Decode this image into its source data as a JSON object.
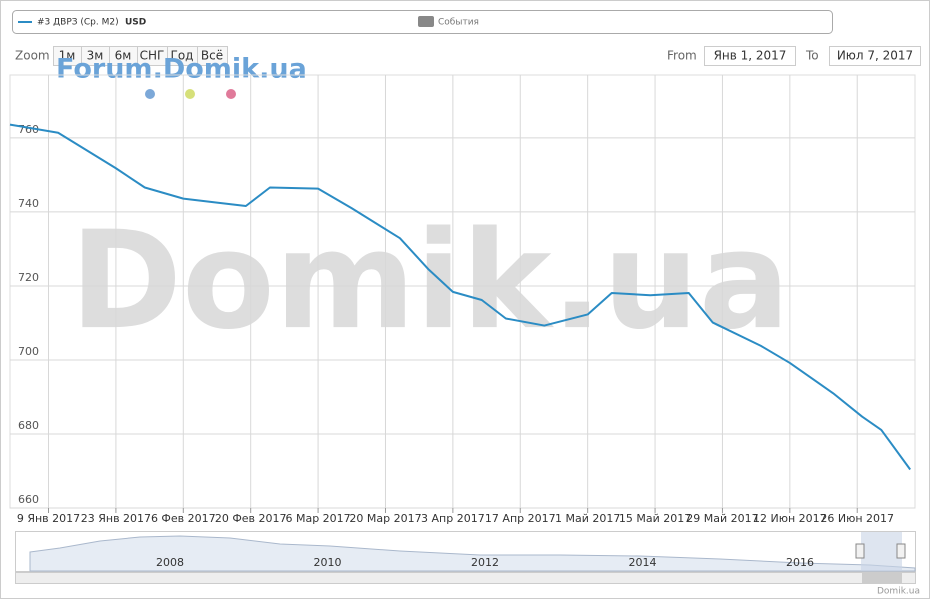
{
  "chart_data": {
    "type": "line",
    "legend": {
      "series_label": "#3 ДВРЗ (Ср. М2)",
      "unit": "USD",
      "events": "События"
    },
    "zoom": {
      "label": "Zoom",
      "buttons": [
        "1м",
        "3м",
        "6м",
        "СНГ",
        "Год",
        "Всё"
      ]
    },
    "range": {
      "from_label": "From",
      "from": "Янв 1, 2017",
      "to_label": "To",
      "to": "Июл 7, 2017"
    },
    "watermark": "Forum.Domik.ua",
    "background_text": "Domik.ua",
    "credits": "Domik.ua",
    "series": [
      {
        "name": "#3 ДВРЗ (Ср. М2)",
        "color": "#2b8cc4",
        "x": [
          "2017-01-01",
          "2017-01-11",
          "2017-01-23",
          "2017-01-29",
          "2017-02-06",
          "2017-02-13",
          "2017-02-19",
          "2017-02-24",
          "2017-03-06",
          "2017-03-13",
          "2017-03-23",
          "2017-03-29",
          "2017-04-03",
          "2017-04-09",
          "2017-04-14",
          "2017-04-22",
          "2017-05-01",
          "2017-05-06",
          "2017-05-14",
          "2017-05-22",
          "2017-05-27",
          "2017-06-06",
          "2017-06-12",
          "2017-06-21",
          "2017-06-27",
          "2017-07-01",
          "2017-07-07"
        ],
        "values": [
          763.6,
          761.4,
          751.8,
          746.6,
          743.6,
          742.5,
          741.6,
          746.6,
          746.3,
          741,
          732.9,
          724.4,
          718.4,
          716.2,
          711.2,
          709.3,
          712.3,
          718.1,
          717.5,
          718.1,
          710.1,
          703.8,
          699.2,
          691,
          684.7,
          681.1,
          670.4
        ]
      }
    ],
    "xlim": [
      "2017-01-01",
      "2017-07-08"
    ],
    "xticks": [
      {
        "value": "2017-01-09",
        "label": "9 Янв 2017"
      },
      {
        "value": "2017-01-23",
        "label": "23 Янв 2017"
      },
      {
        "value": "2017-02-06",
        "label": "6 Фев 2017"
      },
      {
        "value": "2017-02-20",
        "label": "20 Фев 2017"
      },
      {
        "value": "2017-03-06",
        "label": "6 Мар 2017"
      },
      {
        "value": "2017-03-20",
        "label": "20 Мар 2017"
      },
      {
        "value": "2017-04-03",
        "label": "3 Апр 2017"
      },
      {
        "value": "2017-04-17",
        "label": "17 Апр 2017"
      },
      {
        "value": "2017-05-01",
        "label": "1 Май 2017"
      },
      {
        "value": "2017-05-15",
        "label": "15 Май 2017"
      },
      {
        "value": "2017-05-29",
        "label": "29 Май 2017"
      },
      {
        "value": "2017-06-12",
        "label": "12 Июн 2017"
      },
      {
        "value": "2017-06-26",
        "label": "26 Июн 2017"
      }
    ],
    "ylim": [
      660,
      777
    ],
    "yticks": [
      660,
      680,
      700,
      720,
      740,
      760
    ],
    "grid": true,
    "navigator": {
      "labels": [
        "2008",
        "2010",
        "2012",
        "2014",
        "2016"
      ]
    }
  }
}
